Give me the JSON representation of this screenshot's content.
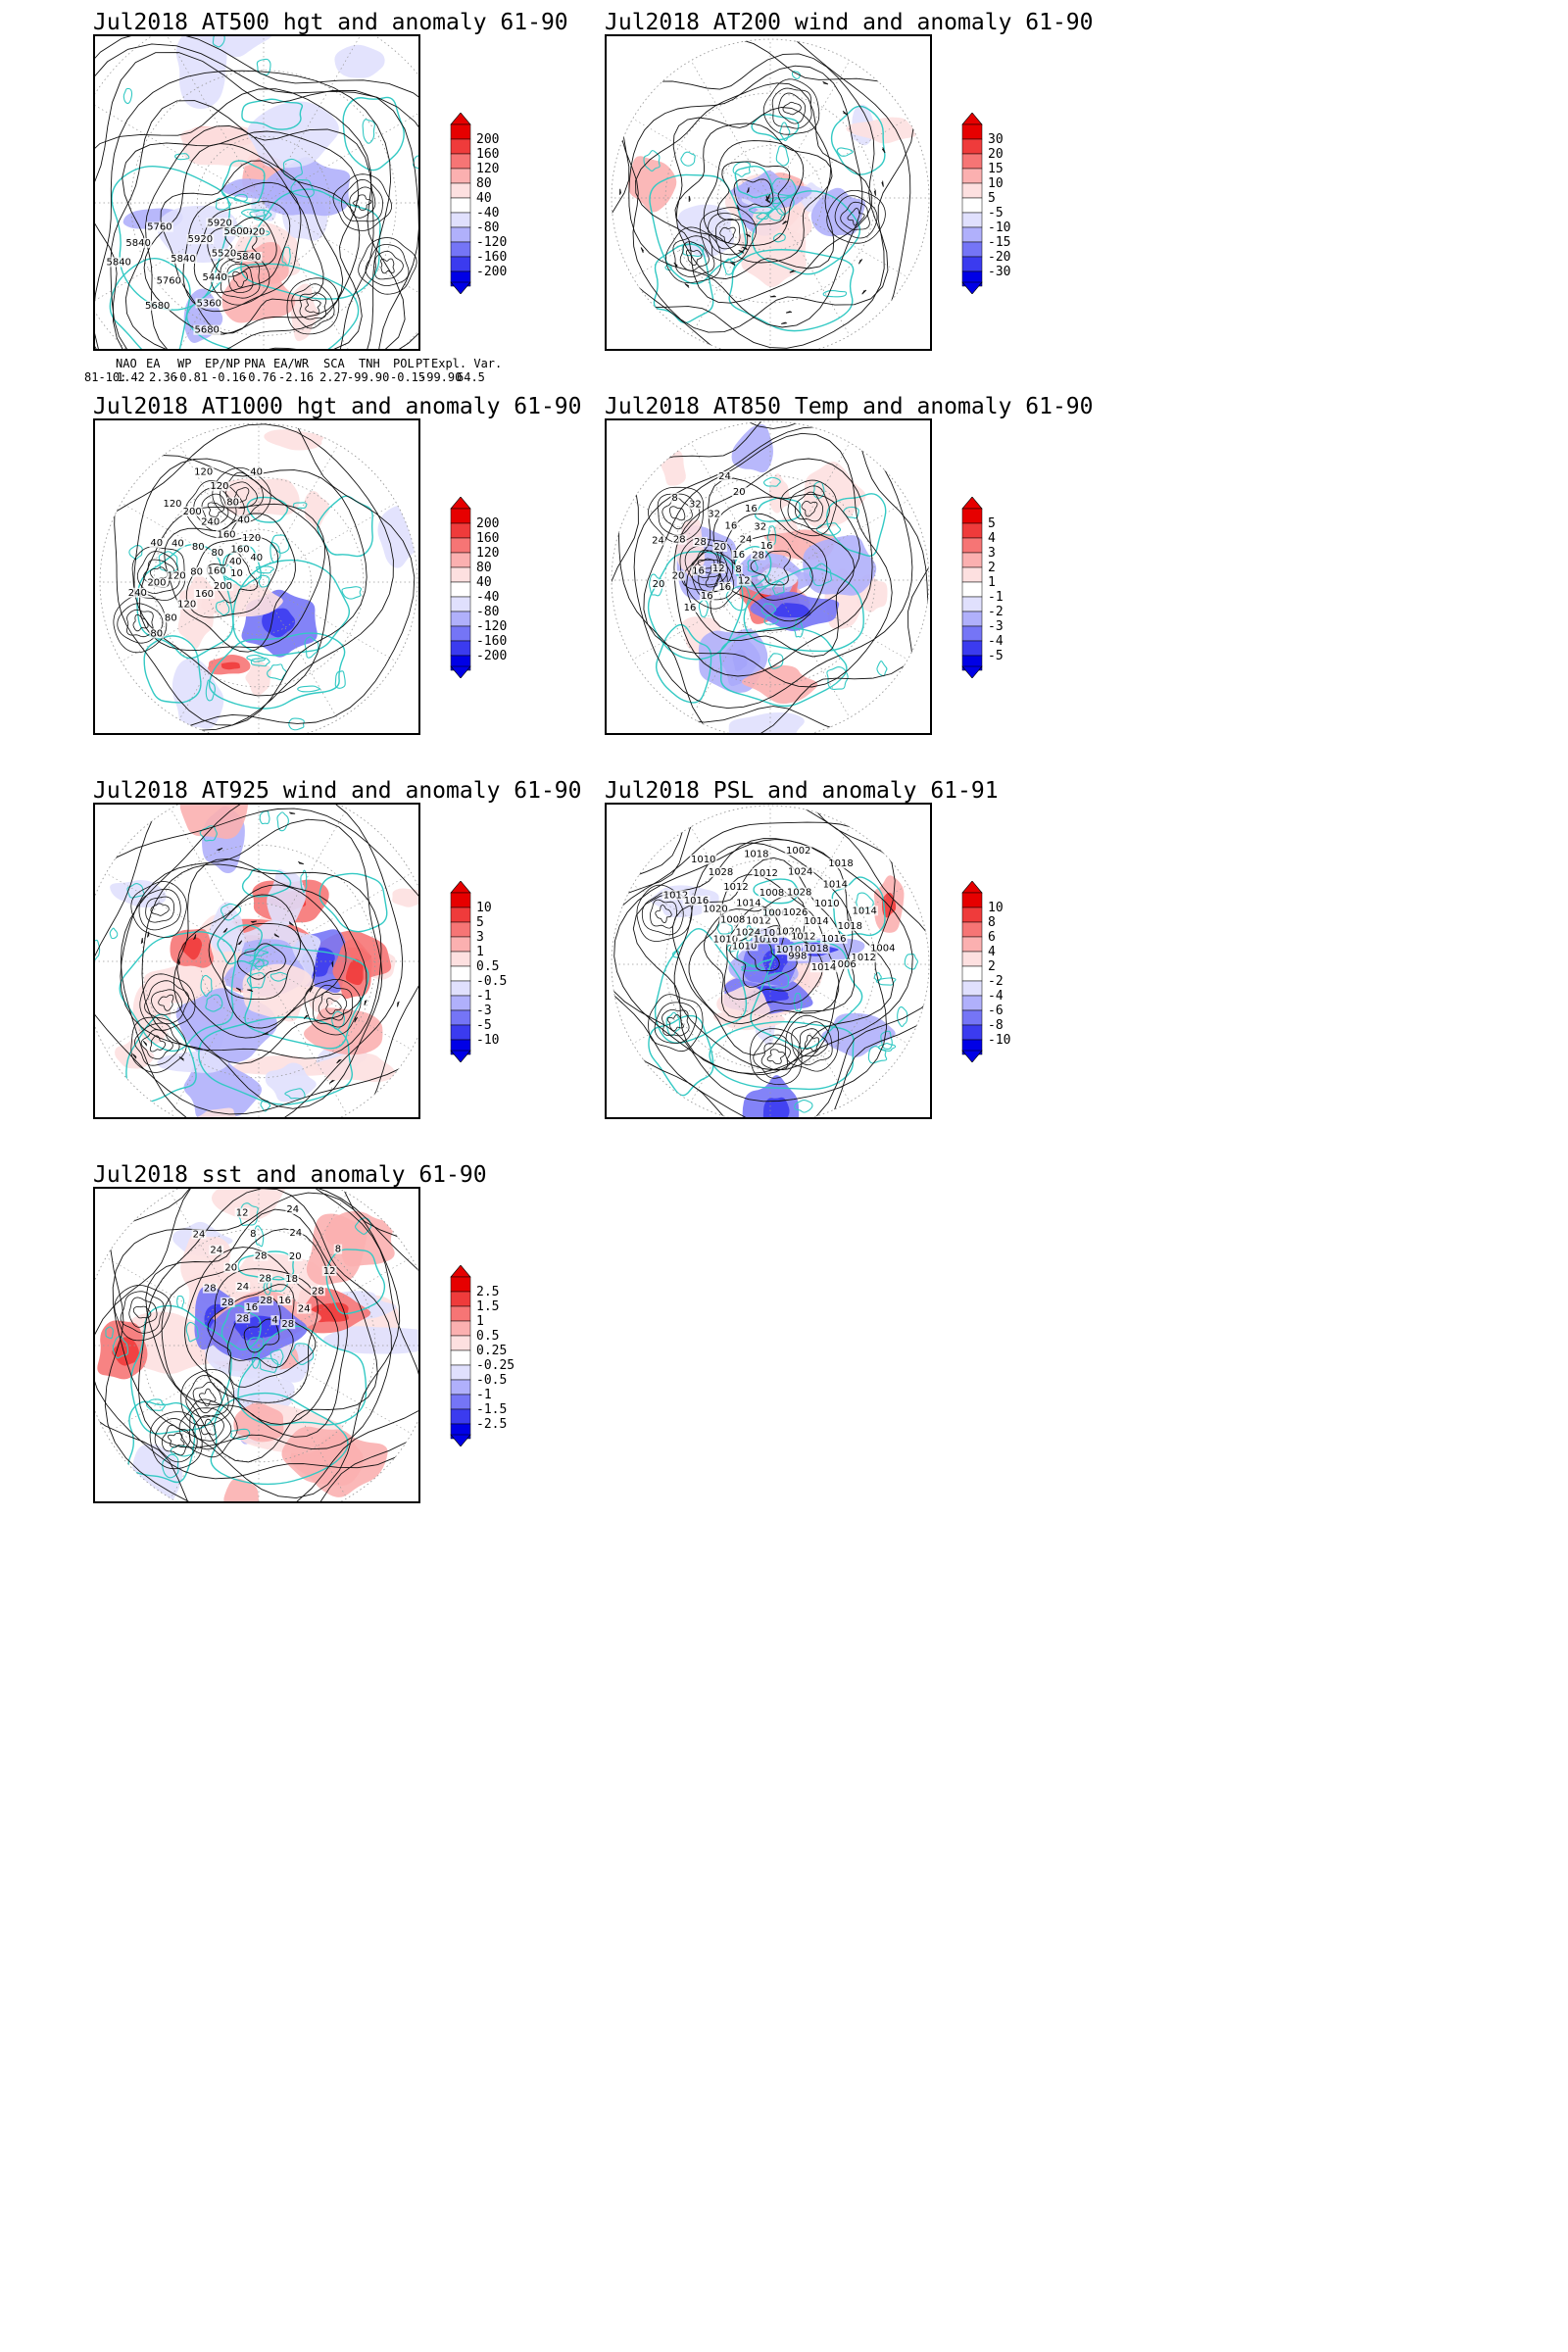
{
  "panels": [
    {
      "id": "p1",
      "title": "Jul2018 AT500 hgt and anomaly 61-90",
      "labels": [
        "5840",
        "5920",
        "5680",
        "5360",
        "5440",
        "5520",
        "5600",
        "5680",
        "5760",
        "5840",
        "5920",
        "5920",
        "5840",
        "5840",
        "5760"
      ],
      "colorbar": [
        "200",
        "160",
        "120",
        "80",
        "40",
        "-40",
        "-80",
        "-120",
        "-160",
        "-200"
      ]
    },
    {
      "id": "p2",
      "title": "Jul2018 AT200 wind and anomaly 61-90",
      "labels": [],
      "colorbar": [
        "30",
        "20",
        "15",
        "10",
        "5",
        "-5",
        "-10",
        "-15",
        "-20",
        "-30"
      ]
    },
    {
      "id": "p3",
      "title": "Jul2018 AT1000 hgt and anomaly 61-90",
      "labels": [
        "80",
        "80",
        "120",
        "160",
        "200",
        "240",
        "200",
        "120",
        "80",
        "160",
        "10",
        "40",
        "40",
        "80",
        "80",
        "40",
        "120",
        "200",
        "240",
        "160",
        "160",
        "120",
        "120",
        "80",
        "40",
        "120",
        "40",
        "40"
      ],
      "colorbar": [
        "200",
        "160",
        "120",
        "80",
        "40",
        "-40",
        "-80",
        "-120",
        "-160",
        "-200"
      ]
    },
    {
      "id": "p4",
      "title": "Jul2018 AT850 Temp and anomaly 61-90",
      "labels": [
        "16",
        "16",
        "16",
        "12",
        "20",
        "20",
        "16",
        "12",
        "8",
        "24",
        "28",
        "28",
        "20",
        "16",
        "8",
        "32",
        "32",
        "16",
        "24",
        "28",
        "24",
        "20",
        "16",
        "32",
        "16"
      ],
      "colorbar": [
        "5",
        "4",
        "3",
        "2",
        "1",
        "-1",
        "-2",
        "-3",
        "-4",
        "-5"
      ]
    },
    {
      "id": "p5",
      "title": "Jul2018 AT925 wind and anomaly 61-90",
      "labels": [],
      "colorbar": [
        "10",
        "5",
        "3",
        "1",
        "0.5",
        "-0.5",
        "-1",
        "-3",
        "-5",
        "-10"
      ]
    },
    {
      "id": "p6",
      "title": "Jul2018 PSL and anomaly 61-91",
      "labels": [
        "1010",
        "1010",
        "1012",
        "1016",
        "1020",
        "1008",
        "1024",
        "1010",
        "1028",
        "1012",
        "1014",
        "1012",
        "1016",
        "1018",
        "1012",
        "1008",
        "1006",
        "1004",
        "1002",
        "1024",
        "1028",
        "1026",
        "1020",
        "1018",
        "1014",
        "1010",
        "1014",
        "1012",
        "1010",
        "1014",
        "1018",
        "1016",
        "1018",
        "998",
        "1004",
        "1012",
        "1006",
        "1014"
      ],
      "colorbar": [
        "10",
        "8",
        "6",
        "4",
        "2",
        "-2",
        "-4",
        "-6",
        "-8",
        "-10"
      ]
    },
    {
      "id": "p7",
      "title": "Jul2018 sst and anomaly 61-90",
      "labels": [
        "28",
        "28",
        "28",
        "24",
        "24",
        "20",
        "24",
        "16",
        "12",
        "8",
        "28",
        "28",
        "28",
        "24",
        "24",
        "20",
        "18",
        "16",
        "4",
        "8",
        "12",
        "28",
        "24",
        "28"
      ],
      "colorbar": [
        "2.5",
        "1.5",
        "1",
        "0.5",
        "0.25",
        "-0.25",
        "-0.5",
        "-1",
        "-1.5",
        "-2.5"
      ]
    }
  ],
  "indices": {
    "headers": [
      "NAO",
      "EA",
      "WP",
      "EP/NP",
      "PNA",
      "EA/WR",
      "SCA",
      "TNH",
      "POL",
      "PT",
      "Expl. Var."
    ],
    "row_label": "81-10:",
    "values": [
      "1.42",
      "2.36",
      "-0.81",
      "-0.16",
      "-0.76",
      "-2.16",
      "2.27",
      "-99.90",
      "-0.15",
      "-99.90",
      "64.5"
    ]
  },
  "colors": {
    "land_outline": "#33c9c4",
    "contour": "#111111",
    "grid": "#9a9a9a",
    "scale": [
      "#e60000",
      "#ef3b3b",
      "#f67575",
      "#fbb0b0",
      "#fde0e0",
      "#ffffff",
      "#e0e0fd",
      "#b0b0fb",
      "#7575f6",
      "#3b3bef",
      "#0000e6"
    ]
  }
}
